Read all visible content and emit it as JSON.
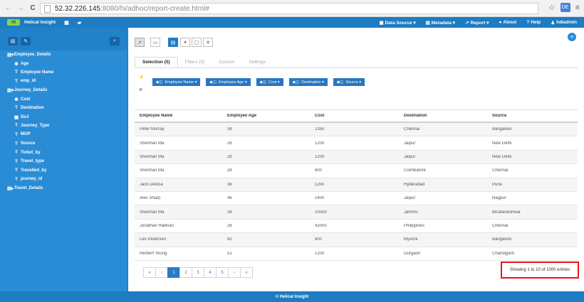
{
  "browser": {
    "url_host": "52.32.226.145",
    "url_path": ":8080/hi/adhoc/report-create.html#",
    "back_icon": "←",
    "forward_icon": "→",
    "reload_icon": "C",
    "star_icon": "☆",
    "menu_icon": "≡",
    "extension_label": "DE"
  },
  "topnav": {
    "logo_text": "HI",
    "brand": "Helical Insight",
    "icons": [
      "▦",
      "▰"
    ],
    "menus": [
      {
        "icon": "▣",
        "label": "Data Source ▾"
      },
      {
        "icon": "▤",
        "label": "Metadata ▾"
      },
      {
        "icon": "↗",
        "label": "Report ▾"
      },
      {
        "icon": "●",
        "label": "About"
      },
      {
        "icon": "?",
        "label": "Help"
      },
      {
        "icon": "♟",
        "label": "hdiadmin"
      }
    ]
  },
  "sidebar": {
    "toolbar": {
      "btn1": "▤",
      "btn2": "✎",
      "search_icon": "⌕"
    },
    "tree": [
      {
        "glyph": "▤▾",
        "label": "Employee_Details",
        "level": 0
      },
      {
        "glyph": "✱",
        "label": "Age",
        "level": 1
      },
      {
        "glyph": "T",
        "label": "Employee Name",
        "level": 1
      },
      {
        "glyph": "T",
        "label": "emp_id",
        "level": 1
      },
      {
        "glyph": "▤▾",
        "label": "Journey_Details",
        "level": 0
      },
      {
        "glyph": "✱",
        "label": "Cost",
        "level": 1
      },
      {
        "glyph": "T",
        "label": "Destination",
        "level": 1
      },
      {
        "glyph": "▦",
        "label": "DoJ",
        "level": 1
      },
      {
        "glyph": "T",
        "label": "Journey_Type",
        "level": 1
      },
      {
        "glyph": "T",
        "label": "MOP",
        "level": 1
      },
      {
        "glyph": "T",
        "label": "Source",
        "level": 1
      },
      {
        "glyph": "T",
        "label": "Ticket_by",
        "level": 1
      },
      {
        "glyph": "T",
        "label": "Travel_type",
        "level": 1
      },
      {
        "glyph": "T",
        "label": "Travelled_by",
        "level": 1
      },
      {
        "glyph": "T",
        "label": "journey_id",
        "level": 1
      },
      {
        "glyph": "▤▸",
        "label": "Travel_Details",
        "level": 0
      }
    ]
  },
  "toolbar": {
    "tools": [
      {
        "icon": "↗",
        "name": "line-chart-tool"
      },
      {
        "icon": "▭",
        "name": "bar-chart-tool"
      },
      {
        "icon": "▤",
        "name": "table-view-tool"
      },
      {
        "icon": "◕",
        "name": "pie-chart-tool"
      },
      {
        "icon": "▢",
        "name": "export-tool"
      },
      {
        "icon": "✕",
        "name": "crosstab-tool"
      }
    ],
    "menu_icon": "≡"
  },
  "tabs": [
    "Selection (5)",
    "Filters (0)",
    "Custom",
    "Settings"
  ],
  "side_marks": [
    "⚡",
    "⚙"
  ],
  "fields": [
    {
      "icon": "◆◫",
      "label": "Employee Name ▾"
    },
    {
      "icon": "◆◫",
      "label": "Employee Age ▾"
    },
    {
      "icon": "◆◫",
      "label": "Cost ▾"
    },
    {
      "icon": "◆◫",
      "label": "Destination ▾"
    },
    {
      "icon": "◆◫",
      "label": "Source ▾"
    }
  ],
  "table": {
    "headers": [
      "Employee Name",
      "Employee Age",
      "Cost",
      "Destination",
      "Source"
    ],
    "rows": [
      [
        "Peter Murray",
        "38",
        "1350",
        "Chennai",
        "Bangalore"
      ],
      [
        "Sherman Ma",
        "28",
        "1200",
        "Jaipur",
        "New Delhi"
      ],
      [
        "Sherman Ma",
        "28",
        "1200",
        "Jaipur",
        "New Delhi"
      ],
      [
        "Sherman Ma",
        "28",
        "800",
        "Coimbatore",
        "Chennai"
      ],
      [
        "Jack Delosa",
        "38",
        "1200",
        "Hyderabad",
        "Pune"
      ],
      [
        "Alex Sharp",
        "46",
        "2400",
        "Jaipur",
        "Nagpur"
      ],
      [
        "Sherman Ma",
        "28",
        "10000",
        "Jammu",
        "Bhubaneshwar"
      ],
      [
        "Jonathan Hallinan",
        "26",
        "42000",
        "Philippines",
        "Chennai"
      ],
      [
        "Lex Pedersen",
        "42",
        "800",
        "Mysore",
        "Bangalore"
      ],
      [
        "Herbert Yeung",
        "51",
        "1200",
        "Gurgaon",
        "Chandigarh"
      ]
    ]
  },
  "pagination": {
    "first": "«",
    "prev": "‹",
    "pages": [
      "1",
      "2",
      "3",
      "4",
      "5"
    ],
    "active_page": "1",
    "next": "›",
    "last": "»"
  },
  "showing_text": "Showing 1 to 10 of 1000 entries",
  "footer": "© Helical Insight"
}
